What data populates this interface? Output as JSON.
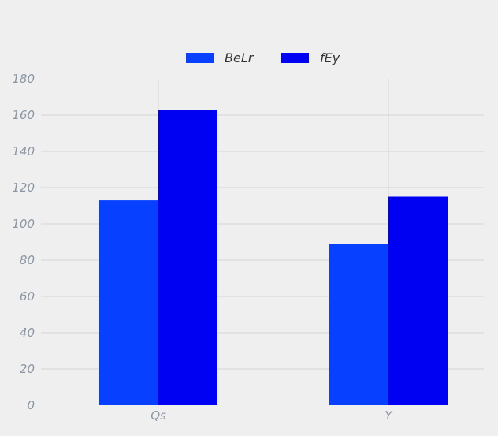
{
  "chart_data": {
    "type": "bar",
    "categories": [
      "Qs",
      "Y"
    ],
    "series": [
      {
        "name": "BeLr",
        "values": [
          113,
          89
        ],
        "color": "#0740ff"
      },
      {
        "name": "fEy",
        "values": [
          163,
          115
        ],
        "color": "#0000f2"
      }
    ],
    "ylim": [
      0,
      180
    ],
    "yticks": [
      0,
      20,
      40,
      60,
      80,
      100,
      120,
      140,
      160,
      180
    ],
    "grid": true,
    "legend_position": "top-center",
    "gridline_color": "#d4d4d4"
  }
}
